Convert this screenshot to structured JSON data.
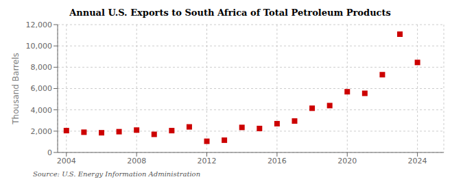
{
  "chart_data": {
    "type": "scatter",
    "title": "Annual U.S. Exports to South Africa of Total Petroleum Products",
    "ylabel": "Thousand Barrels",
    "source": "Source: U.S. Energy Information Administration",
    "x": [
      2004,
      2005,
      2006,
      2007,
      2008,
      2009,
      2010,
      2011,
      2012,
      2013,
      2014,
      2015,
      2016,
      2017,
      2018,
      2019,
      2020,
      2021,
      2022,
      2023,
      2024
    ],
    "values": [
      2050,
      1900,
      1850,
      1950,
      2100,
      1700,
      2050,
      2400,
      1050,
      1150,
      2350,
      2250,
      2700,
      2950,
      4150,
      4400,
      5700,
      5550,
      7300,
      11100,
      8450
    ],
    "color": "#cc0000",
    "marker": "square",
    "xlim": [
      2003.5,
      2025.5
    ],
    "xticks": [
      2004,
      2008,
      2012,
      2016,
      2020,
      2024
    ],
    "ylim": [
      0,
      12000
    ],
    "yticks": [
      0,
      {
        "value": 2000,
        "label": "2,000"
      },
      {
        "value": 4000,
        "label": "4,000"
      },
      {
        "value": 6000,
        "label": "6,000"
      },
      {
        "value": 8000,
        "label": "8,000"
      },
      {
        "value": 10000,
        "label": "10,000"
      },
      {
        "value": 12000,
        "label": "12,000"
      }
    ],
    "grid": true
  }
}
